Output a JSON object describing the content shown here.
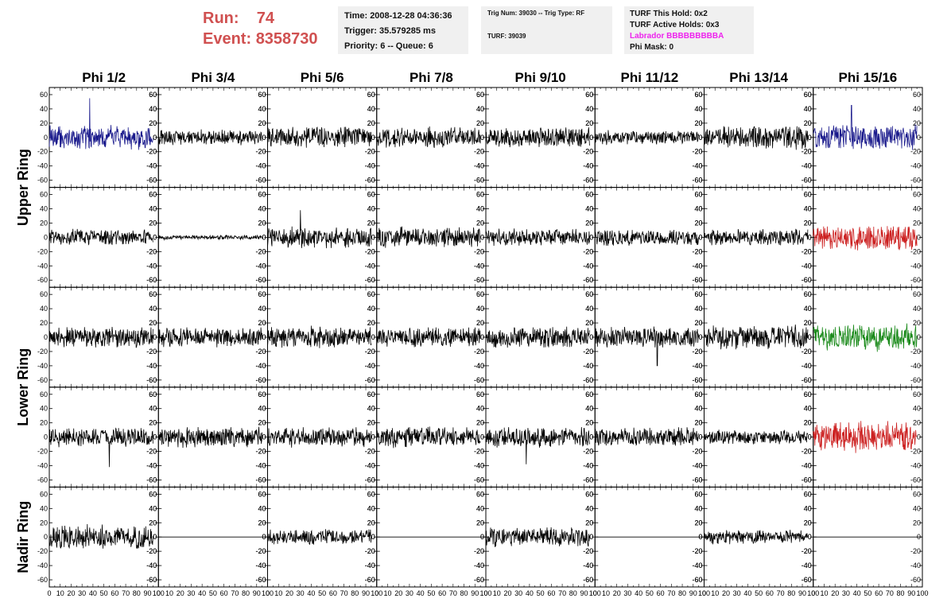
{
  "header": {
    "run_label": "Run:",
    "run_value": "74",
    "event_label": "Event:",
    "event_value": "8358730",
    "time": "Time: 2008-12-28 04:36:36",
    "trigger": "Trigger: 35.579285 ms",
    "priority": "Priority: 6 -- Queue: 6",
    "trig_num": "Trig Num: 39030 -- Trig Type: RF",
    "turf": "TURF: 39039",
    "turf_hold": "TURF This Hold: 0x2",
    "turf_active": "TURF Active Holds: 0x3",
    "labrador": "Labrador BBBBBBBBBA",
    "phi_mask": "Phi Mask: 0"
  },
  "colors": {
    "header_red": "#d05050",
    "labrador_magenta": "#ee22ee",
    "trace_black": "#000000",
    "trace_blue": "#1a1a8c",
    "trace_red": "#cc2020",
    "trace_green": "#1a8a1a"
  },
  "chart_data": {
    "type": "line",
    "columns": [
      "Phi 1/2",
      "Phi 3/4",
      "Phi 5/6",
      "Phi 7/8",
      "Phi 9/10",
      "Phi 11/12",
      "Phi 13/14",
      "Phi 15/16"
    ],
    "ring_labels": [
      "Upper Ring",
      "Lower Ring",
      "Nadir Ring"
    ],
    "ylim": [
      -70,
      70
    ],
    "xlim": [
      0,
      100
    ],
    "y_ticks": [
      -60,
      -40,
      -20,
      0,
      20,
      40,
      60
    ],
    "x_ticks": [
      0,
      10,
      20,
      30,
      40,
      50,
      60,
      70,
      80,
      90,
      100
    ],
    "x_tick_labels": [
      "0",
      "10",
      "20",
      "30",
      "40",
      "50",
      "60",
      "70",
      "80",
      "90",
      "100"
    ],
    "trace_x_range": [
      0,
      95
    ],
    "panels": [
      [
        {
          "amp": 15,
          "spike": 55,
          "spikeAt": 37,
          "color": "blue"
        },
        {
          "amp": 10
        },
        {
          "amp": 13
        },
        {
          "amp": 13
        },
        {
          "amp": 13
        },
        {
          "amp": 9
        },
        {
          "amp": 15
        },
        {
          "amp": 16,
          "spike": 45,
          "spikeAt": 35,
          "color": "blue"
        }
      ],
      [
        {
          "amp": 11
        },
        {
          "amp": 3
        },
        {
          "amp": 14,
          "spike": 38,
          "spikeAt": 30
        },
        {
          "amp": 13
        },
        {
          "amp": 11
        },
        {
          "amp": 11
        },
        {
          "amp": 11
        },
        {
          "amp": 17,
          "color": "red"
        }
      ],
      [
        {
          "amp": 13
        },
        {
          "amp": 13
        },
        {
          "amp": 14
        },
        {
          "amp": 13
        },
        {
          "amp": 14
        },
        {
          "amp": 13,
          "spike": -40,
          "spikeAt": 57
        },
        {
          "amp": 16
        },
        {
          "amp": 18,
          "color": "green"
        }
      ],
      [
        {
          "amp": 12,
          "spike": -42,
          "spikeAt": 55
        },
        {
          "amp": 13
        },
        {
          "amp": 13
        },
        {
          "amp": 13
        },
        {
          "amp": 13,
          "spike": -38,
          "spikeAt": 37
        },
        {
          "amp": 12
        },
        {
          "amp": 9
        },
        {
          "amp": 20,
          "color": "red"
        }
      ],
      [
        {
          "amp": 16
        },
        {
          "amp": 0
        },
        {
          "amp": 10
        },
        {
          "amp": 0
        },
        {
          "amp": 13
        },
        {
          "amp": 0
        },
        {
          "amp": 9
        },
        {
          "amp": 0
        }
      ]
    ]
  }
}
